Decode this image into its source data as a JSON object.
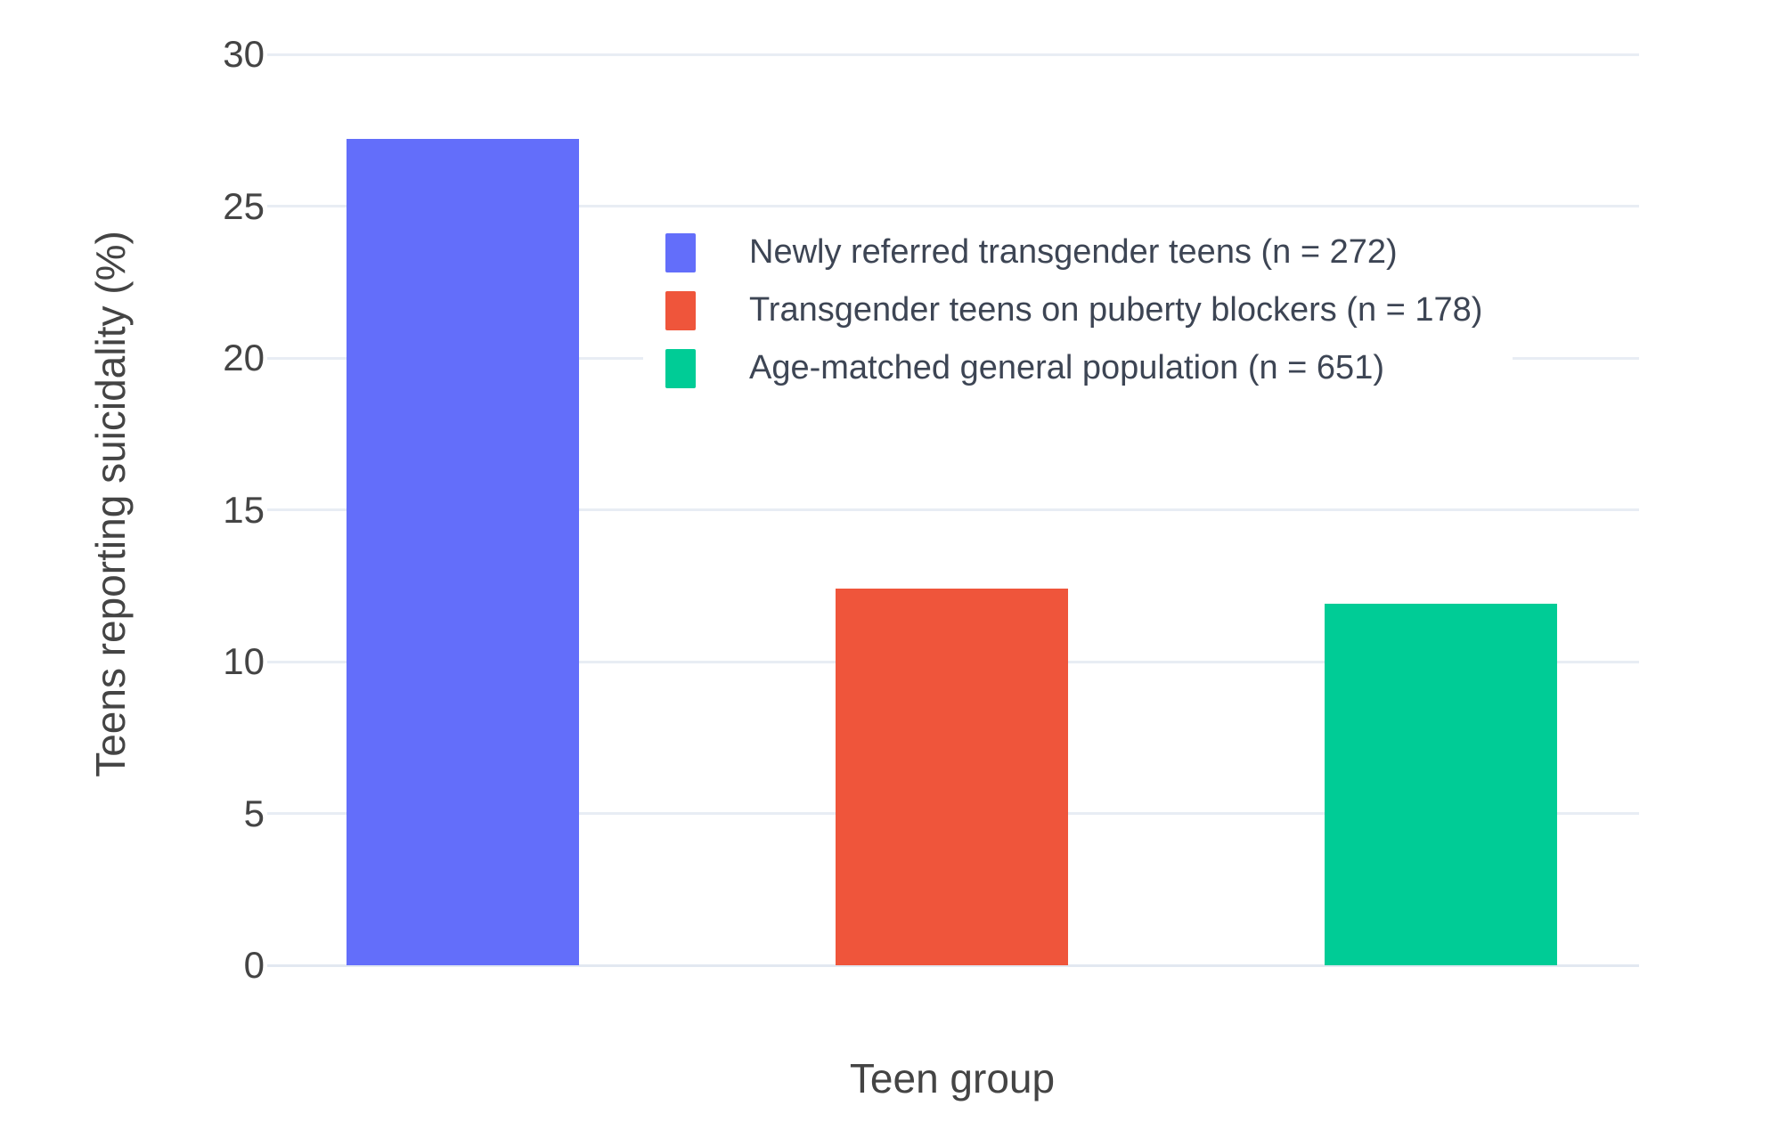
{
  "chart_data": {
    "type": "bar",
    "title": "",
    "xlabel": "Teen group",
    "ylabel": "Teens reporting suicidality (%)",
    "categories": [
      "Newly referred transgender teens (n = 272)",
      "Transgender teens on puberty blockers (n = 178)",
      "Age-matched general population (n = 651)"
    ],
    "values": [
      27.2,
      12.4,
      11.9
    ],
    "colors": [
      "#636EFA",
      "#EF553B",
      "#00CC96"
    ],
    "ylim": [
      0,
      30
    ],
    "yticks": [
      0,
      5,
      10,
      15,
      20,
      25,
      30
    ],
    "grid": true,
    "gridline_color": "#E8EDF4",
    "background_color": "#ffffff",
    "legend_position": "inside-top-center"
  }
}
